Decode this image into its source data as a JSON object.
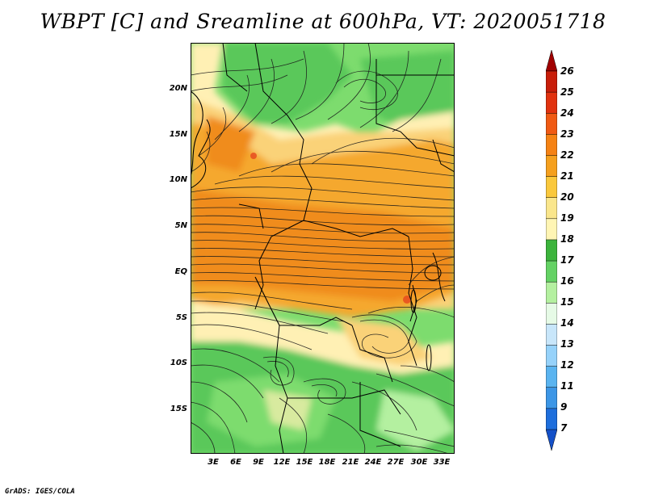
{
  "title": "WBPT [C] and Sreamline at 600hPa, VT: 2020051718",
  "credit": "GrADS: IGES/COLA",
  "lat_labels": [
    "20N",
    "15N",
    "10N",
    "5N",
    "EQ",
    "5S",
    "10S",
    "15S"
  ],
  "lon_labels": [
    "3E",
    "6E",
    "9E",
    "12E",
    "15E",
    "18E",
    "21E",
    "24E",
    "27E",
    "30E",
    "33E"
  ],
  "colorbar": {
    "labels": [
      "26",
      "25",
      "24",
      "23",
      "22",
      "21",
      "20",
      "19",
      "18",
      "17",
      "16",
      "15",
      "14",
      "13",
      "12",
      "11",
      "9",
      "7"
    ],
    "colors": [
      "#a00000",
      "#c81e0a",
      "#e1320f",
      "#f05a14",
      "#f58214",
      "#f5a01e",
      "#fac83c",
      "#fae68c",
      "#fff5b4",
      "#3cb43c",
      "#64d264",
      "#b4f0a0",
      "#e6fae6",
      "#c8e6fa",
      "#96d2fa",
      "#5ab4f0",
      "#3c96e6",
      "#1e6edc",
      "#1450c8"
    ]
  },
  "map": {
    "field_colors": {
      "green_dark": "#5ac85a",
      "green_mid": "#7ddc6e",
      "green_light": "#b4f0a0",
      "cream": "#fff0b4",
      "yellow": "#fad278",
      "orange": "#f5a82e",
      "orange_deep": "#f08c1e",
      "red_spot": "#e6461e"
    }
  }
}
